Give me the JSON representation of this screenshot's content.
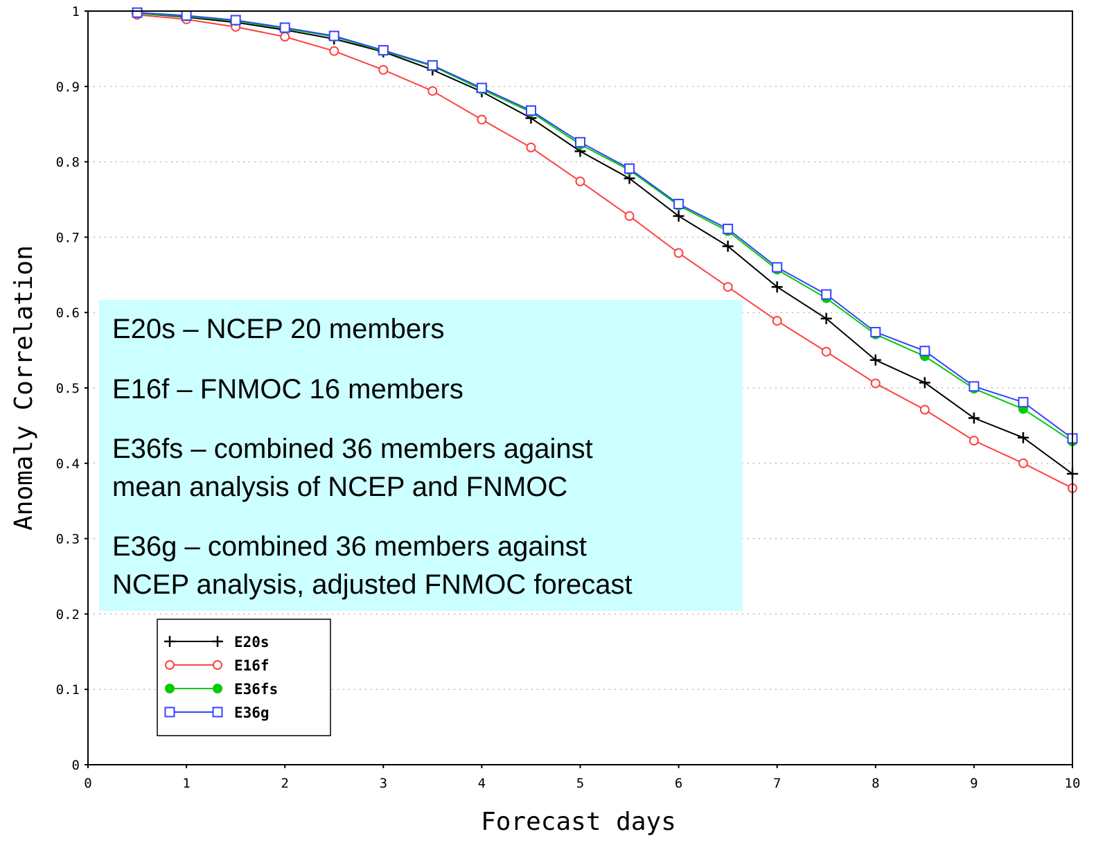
{
  "chart_data": {
    "type": "line",
    "title": "",
    "xlabel": "Forecast days",
    "ylabel": "Anomaly Correlation",
    "xlim": [
      0,
      10
    ],
    "ylim": [
      0,
      1
    ],
    "xticks": [
      0,
      1,
      2,
      3,
      4,
      5,
      6,
      7,
      8,
      9,
      10
    ],
    "xtick_labels": [
      "0",
      "1",
      "2",
      "3",
      "4",
      "5",
      "6",
      "7",
      "8",
      "9",
      "10"
    ],
    "yticks": [
      0,
      0.1,
      0.2,
      0.3,
      0.4,
      0.5,
      0.6,
      0.7,
      0.8,
      0.9,
      1
    ],
    "ytick_labels": [
      "0",
      "0.1",
      "0.2",
      "0.3",
      "0.4",
      "0.5",
      "0.6",
      "0.7",
      "0.8",
      "0.9",
      "1"
    ],
    "grid": "horizontal dotted",
    "legend_position": "lower-left",
    "x": [
      0.5,
      1,
      1.5,
      2,
      2.5,
      3,
      3.5,
      4,
      4.5,
      5,
      5.5,
      6,
      6.5,
      7,
      7.5,
      8,
      8.5,
      9,
      9.5,
      10
    ],
    "series": [
      {
        "name": "E20s",
        "color": "#000000",
        "marker": "plus",
        "values": [
          0.997,
          0.992,
          0.985,
          0.975,
          0.963,
          0.946,
          0.922,
          0.893,
          0.858,
          0.814,
          0.778,
          0.728,
          0.688,
          0.634,
          0.592,
          0.537,
          0.507,
          0.46,
          0.434,
          0.386
        ]
      },
      {
        "name": "E16f",
        "color": "#ff4040",
        "marker": "open-circle",
        "values": [
          0.995,
          0.989,
          0.979,
          0.966,
          0.947,
          0.922,
          0.894,
          0.856,
          0.819,
          0.774,
          0.728,
          0.679,
          0.634,
          0.589,
          0.548,
          0.506,
          0.471,
          0.43,
          0.4,
          0.367
        ]
      },
      {
        "name": "E36fs",
        "color": "#00cc00",
        "marker": "filled-circle",
        "values": [
          0.997,
          0.993,
          0.987,
          0.977,
          0.966,
          0.947,
          0.927,
          0.896,
          0.866,
          0.823,
          0.789,
          0.742,
          0.708,
          0.657,
          0.619,
          0.571,
          0.542,
          0.499,
          0.472,
          0.429
        ]
      },
      {
        "name": "E36g",
        "color": "#3344ff",
        "marker": "open-square",
        "values": [
          0.998,
          0.994,
          0.988,
          0.978,
          0.967,
          0.948,
          0.928,
          0.898,
          0.868,
          0.826,
          0.791,
          0.744,
          0.711,
          0.66,
          0.624,
          0.574,
          0.549,
          0.502,
          0.481,
          0.433
        ]
      }
    ],
    "annotation": {
      "background": "#ccffff",
      "lines": [
        [
          "E20s – NCEP 20 members"
        ],
        [
          "E16f – FNMOC 16 members"
        ],
        [
          "E36fs – combined 36 members against",
          "mean analysis of NCEP and FNMOC"
        ],
        [
          "E36g – combined 36 members against",
          "NCEP analysis, adjusted FNMOC forecast"
        ]
      ]
    }
  }
}
